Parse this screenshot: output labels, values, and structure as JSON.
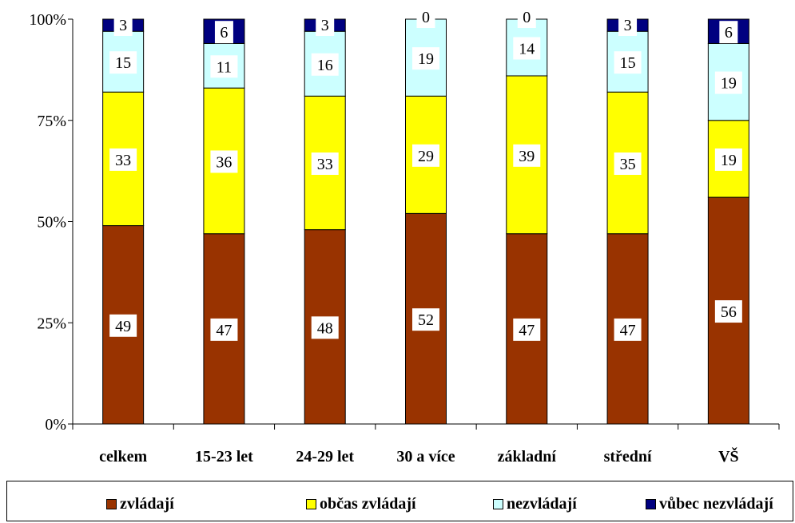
{
  "chart_data": {
    "type": "bar",
    "stacked": true,
    "normalized": true,
    "categories": [
      "celkem",
      "15-23 let",
      "24-29 let",
      "30 a více",
      "základní",
      "střední",
      "VŠ"
    ],
    "series": [
      {
        "name": "zvládají",
        "color": "#993300",
        "values": [
          49,
          47,
          48,
          52,
          47,
          47,
          56
        ]
      },
      {
        "name": "občas zvládají",
        "color": "#FFFF00",
        "values": [
          33,
          36,
          33,
          29,
          39,
          35,
          19
        ]
      },
      {
        "name": "nezvládají",
        "color": "#CCFFFF",
        "values": [
          15,
          11,
          16,
          19,
          14,
          15,
          19
        ]
      },
      {
        "name": "vůbec nezvládají",
        "color": "#000080",
        "values": [
          3,
          6,
          3,
          0,
          0,
          3,
          6
        ]
      }
    ],
    "yticks": [
      "0%",
      "25%",
      "50%",
      "75%",
      "100%"
    ],
    "ylim": [
      0,
      100
    ],
    "legend": "bottom",
    "grid": false
  }
}
